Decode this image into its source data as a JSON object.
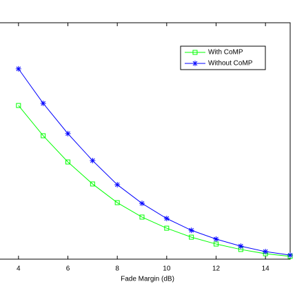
{
  "chart_data": {
    "type": "line",
    "x_label": "Fade Margin (dB)",
    "x": [
      4,
      5,
      6,
      7,
      8,
      9,
      10,
      11,
      12,
      13,
      14,
      15
    ],
    "series": [
      {
        "name": "With CoMP",
        "color": "#00ff00",
        "marker": "square",
        "values": [
          0.65,
          0.522,
          0.411,
          0.318,
          0.239,
          0.178,
          0.131,
          0.093,
          0.064,
          0.041,
          0.023,
          0.012
        ]
      },
      {
        "name": "Without CoMP",
        "color": "#0000ff",
        "marker": "asterisk",
        "values": [
          0.805,
          0.659,
          0.531,
          0.417,
          0.315,
          0.236,
          0.172,
          0.122,
          0.085,
          0.055,
          0.032,
          0.017
        ]
      }
    ],
    "xlim": [
      3,
      15
    ],
    "xticks": [
      4,
      6,
      8,
      10,
      12,
      14
    ],
    "ylim": [
      0,
      1
    ],
    "legend": "upper-right"
  }
}
